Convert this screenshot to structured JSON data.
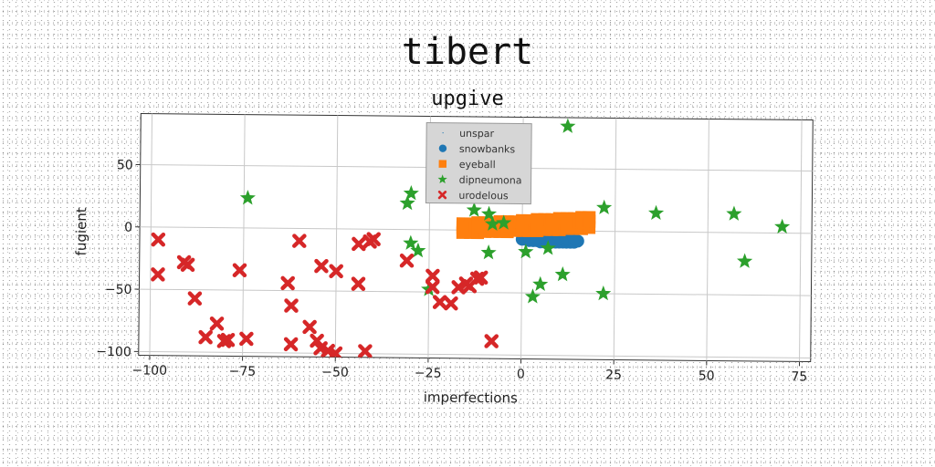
{
  "title": "tibert",
  "chart_data": {
    "type": "scatter",
    "title": "upgive",
    "xlabel": "imperfections",
    "ylabel": "fugient",
    "xlim": [
      -103,
      78
    ],
    "ylim": [
      -103,
      91
    ],
    "xticks": [
      -100,
      -75,
      -50,
      -25,
      0,
      25,
      50,
      75
    ],
    "yticks": [
      -100,
      -50,
      0,
      50
    ],
    "xtick_labels": [
      "−100",
      "−75",
      "−50",
      "−25",
      "0",
      "25",
      "50",
      "75"
    ],
    "ytick_labels": [
      "−100",
      "−50",
      "0",
      "50"
    ],
    "grid": true,
    "legend_position": "top-center",
    "series": [
      {
        "name": "unspar",
        "marker": "point",
        "color": "#1f77b4",
        "x": [],
        "y": []
      },
      {
        "name": "snowbanks",
        "marker": "circle",
        "color": "#1f77b4",
        "x": [
          0,
          1,
          2,
          3,
          4,
          5,
          6,
          7,
          8,
          9,
          10,
          11,
          12,
          13,
          14,
          15,
          2,
          4,
          6,
          8,
          10,
          12,
          14
        ],
        "y": [
          -7,
          -7,
          -8,
          -8,
          -8,
          -9,
          -9,
          -9,
          -9,
          -9,
          -9,
          -9,
          -9,
          -9,
          -9,
          -8,
          -6,
          -6,
          -6,
          -6,
          -6,
          -6,
          -6
        ]
      },
      {
        "name": "eyeball",
        "marker": "square",
        "color": "#ff7f0e",
        "x": [
          -16,
          -14,
          -12,
          -10,
          -8,
          -6,
          -4,
          -2,
          0,
          2,
          4,
          6,
          8,
          10,
          12,
          14,
          16,
          18,
          -16,
          -14,
          -12,
          -10,
          -8,
          -6,
          -4,
          -2,
          0,
          2,
          4,
          6,
          8,
          10,
          12,
          14,
          16,
          18,
          -16,
          -12,
          -8,
          -4,
          0,
          4,
          8,
          12,
          16,
          18
        ],
        "y": [
          -2,
          -2,
          -2,
          -1,
          -1,
          -1,
          -1,
          0,
          0,
          0,
          0,
          1,
          1,
          1,
          2,
          2,
          2,
          3,
          5,
          5,
          6,
          6,
          6,
          7,
          7,
          7,
          8,
          8,
          9,
          9,
          9,
          10,
          10,
          10,
          11,
          11,
          2,
          3,
          3,
          4,
          4,
          5,
          5,
          6,
          7,
          8
        ]
      },
      {
        "name": "dipneumona",
        "marker": "star",
        "color": "#2ca02c",
        "x": [
          -74,
          -30,
          -31,
          -30,
          -28,
          -25,
          -13,
          -9,
          -8,
          -9,
          -5,
          1,
          3,
          5,
          7,
          11,
          12,
          22,
          22,
          36,
          57,
          60,
          70
        ],
        "y": [
          24,
          29,
          21,
          -11,
          -17,
          -48,
          16,
          13,
          5,
          -18,
          6,
          -17,
          -53,
          -43,
          -14,
          -35,
          84,
          19,
          -50,
          15,
          15,
          -23,
          5
        ]
      },
      {
        "name": "urodelous",
        "marker": "x",
        "color": "#d62728",
        "x": [
          -98,
          -98,
          -91,
          -90,
          -88,
          -85,
          -82,
          -80,
          -79,
          -76,
          -74,
          -63,
          -62,
          -62,
          -60,
          -57,
          -55,
          -54,
          -54,
          -52,
          -50,
          -50,
          -44,
          -44,
          -42,
          -41,
          -40,
          -31,
          -24,
          -24,
          -22,
          -19,
          -17,
          -15,
          -14,
          -12,
          -11,
          -8
        ],
        "y": [
          -10,
          -38,
          -28,
          -30,
          -57,
          -88,
          -77,
          -91,
          -90,
          -34,
          -89,
          -44,
          -62,
          -93,
          -10,
          -79,
          -90,
          -96,
          -30,
          -98,
          -34,
          -100,
          -44,
          -12,
          -98,
          -10,
          -8,
          -25,
          -37,
          -46,
          -58,
          -59,
          -46,
          -43,
          -45,
          -39,
          -38,
          -89
        ]
      }
    ]
  }
}
